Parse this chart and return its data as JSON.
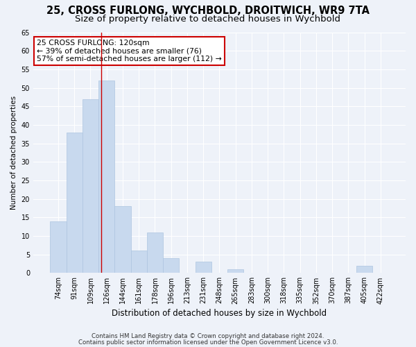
{
  "title1": "25, CROSS FURLONG, WYCHBOLD, DROITWICH, WR9 7TA",
  "title2": "Size of property relative to detached houses in Wychbold",
  "xlabel": "Distribution of detached houses by size in Wychbold",
  "ylabel": "Number of detached properties",
  "categories": [
    "74sqm",
    "91sqm",
    "109sqm",
    "126sqm",
    "144sqm",
    "161sqm",
    "178sqm",
    "196sqm",
    "213sqm",
    "231sqm",
    "248sqm",
    "265sqm",
    "283sqm",
    "300sqm",
    "318sqm",
    "335sqm",
    "352sqm",
    "370sqm",
    "387sqm",
    "405sqm",
    "422sqm"
  ],
  "values": [
    14,
    38,
    47,
    52,
    18,
    6,
    11,
    4,
    0,
    3,
    0,
    1,
    0,
    0,
    0,
    0,
    0,
    0,
    0,
    2,
    0
  ],
  "bar_color": "#c8d9ee",
  "bar_edge_color": "#adc4e0",
  "vline_x": 2.68,
  "vline_color": "#cc0000",
  "annotation_text": "25 CROSS FURLONG: 120sqm\n← 39% of detached houses are smaller (76)\n57% of semi-detached houses are larger (112) →",
  "annotation_box_color": "#ffffff",
  "annotation_box_edge": "#cc0000",
  "ylim": [
    0,
    65
  ],
  "yticks": [
    0,
    5,
    10,
    15,
    20,
    25,
    30,
    35,
    40,
    45,
    50,
    55,
    60,
    65
  ],
  "footer1": "Contains HM Land Registry data © Crown copyright and database right 2024.",
  "footer2": "Contains public sector information licensed under the Open Government Licence v3.0.",
  "background_color": "#eef2f9",
  "grid_color": "#ffffff",
  "title_fontsize": 10.5,
  "subtitle_fontsize": 9.5,
  "annotation_fontsize": 7.8,
  "ylabel_fontsize": 7.5,
  "xlabel_fontsize": 8.5,
  "tick_fontsize": 7,
  "footer_fontsize": 6.2
}
